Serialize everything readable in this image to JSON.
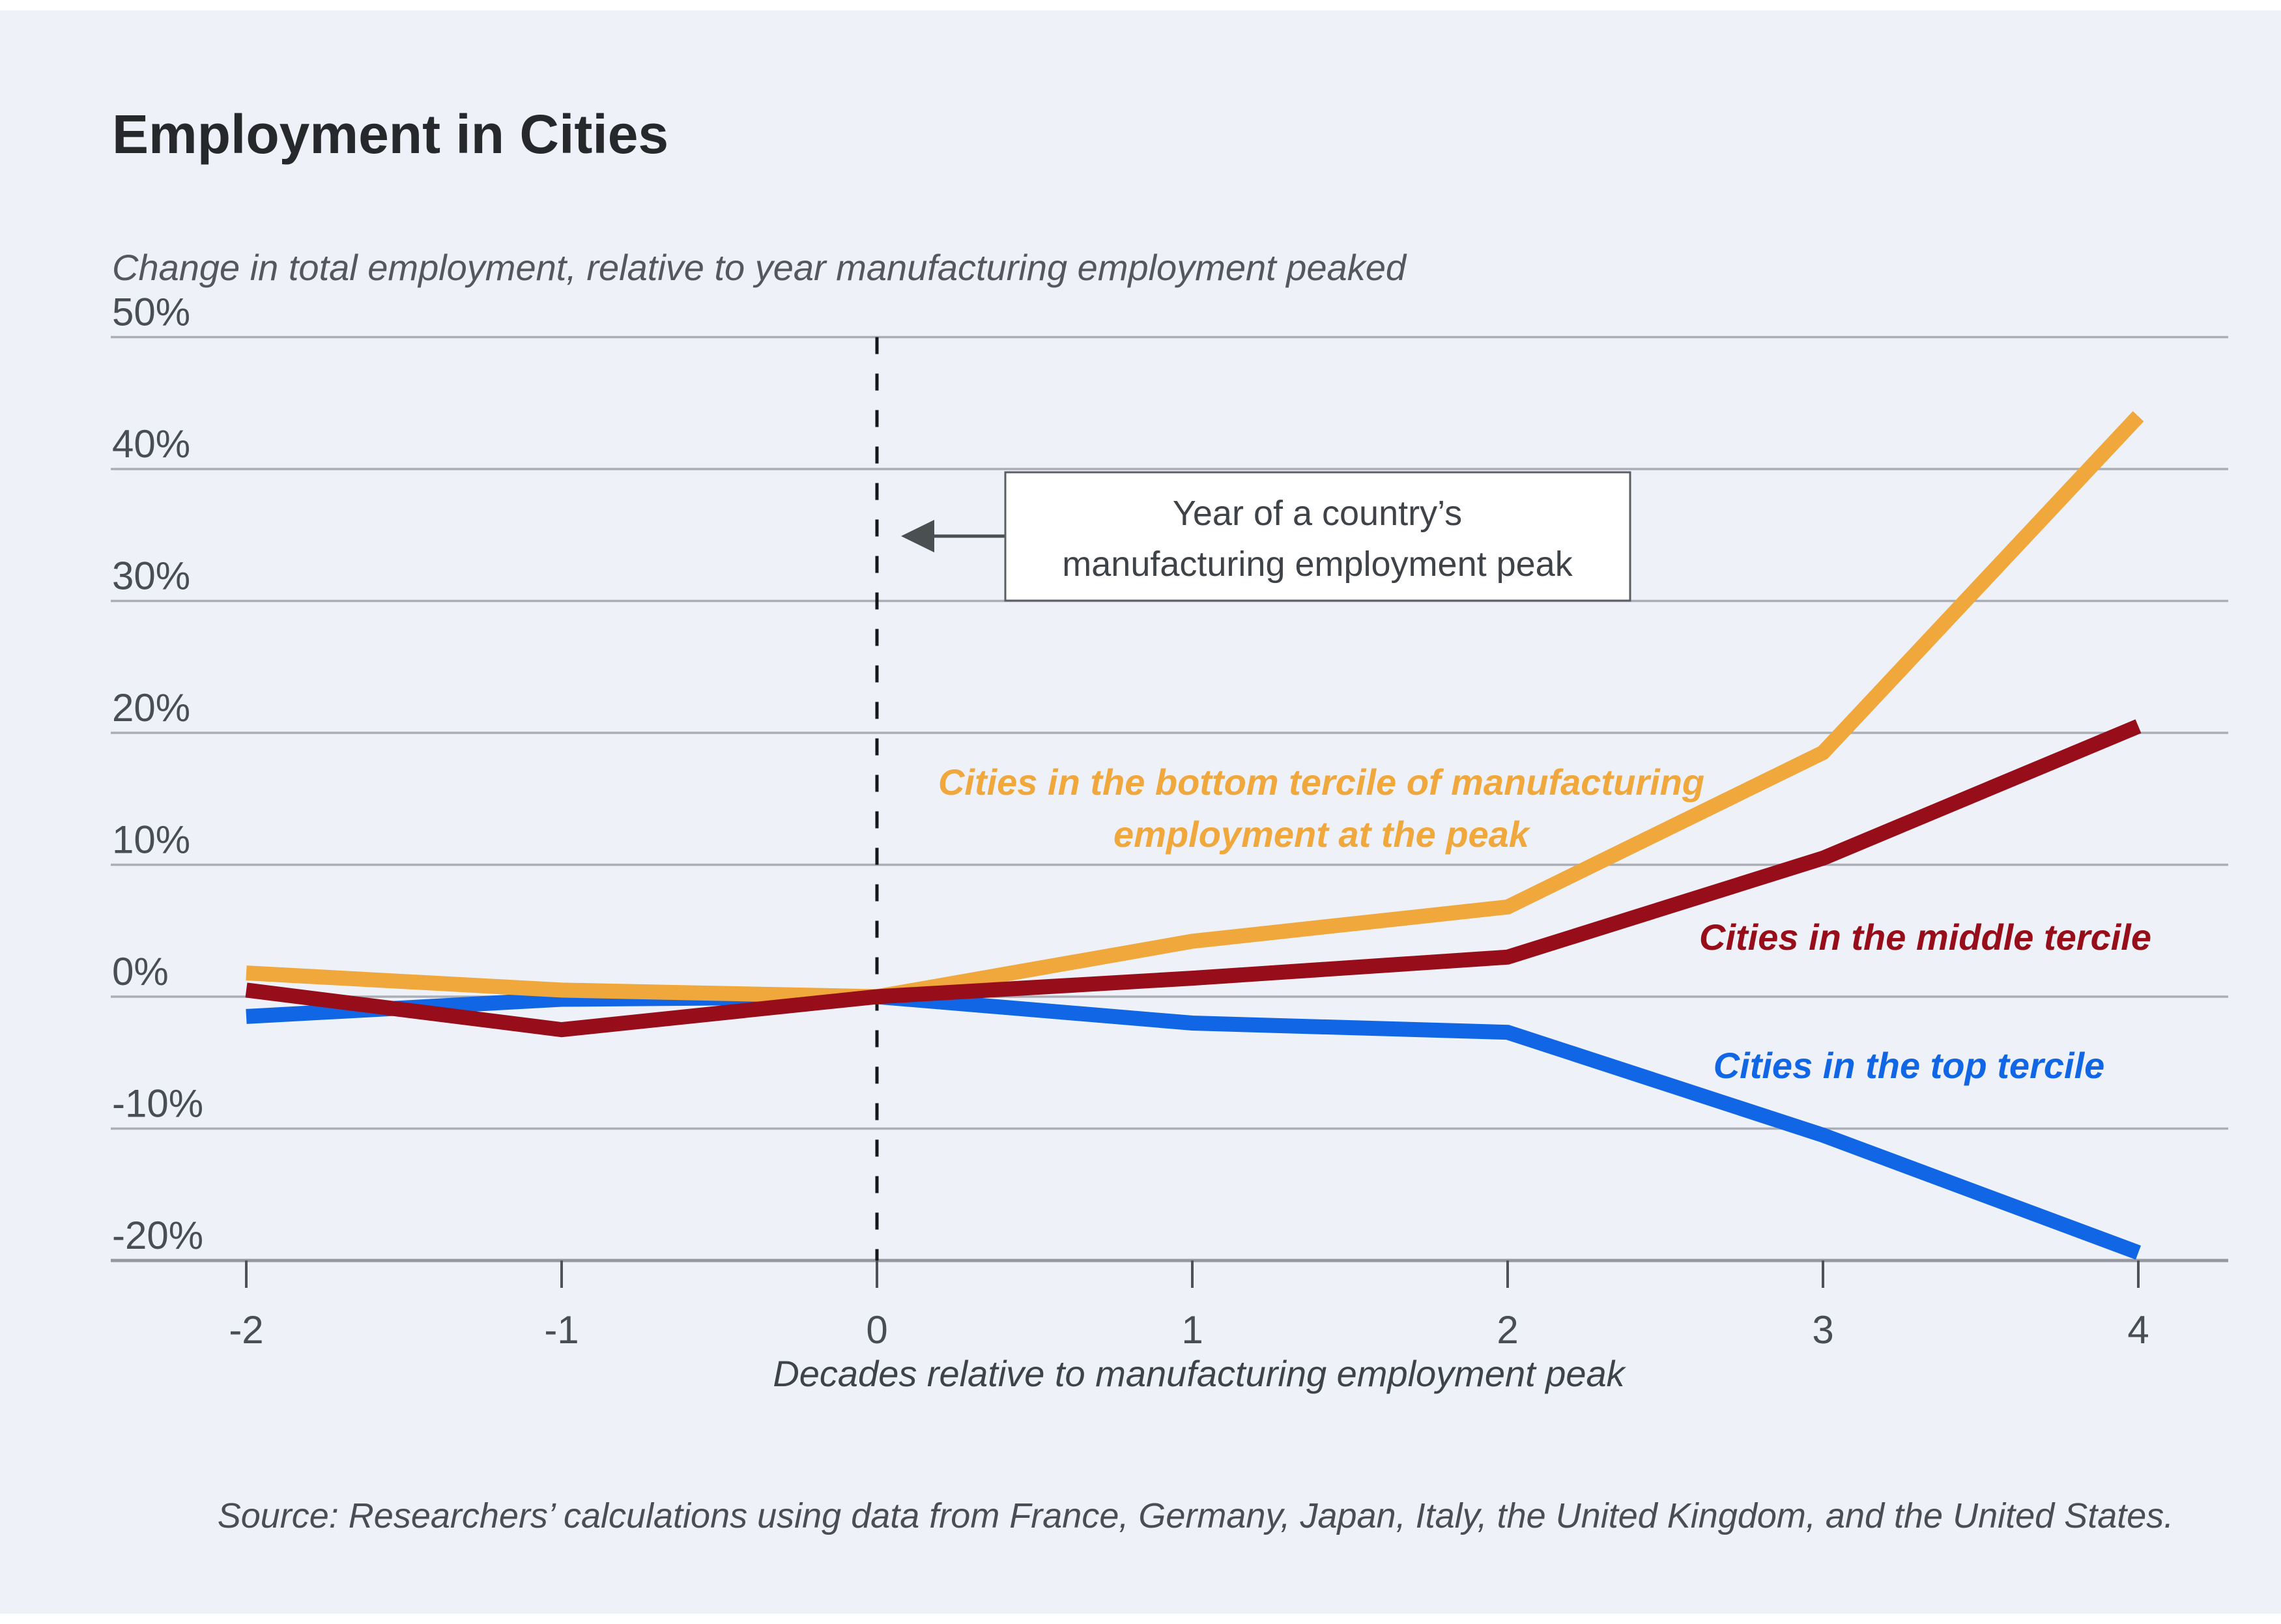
{
  "page": {
    "title": "Employment in Cities",
    "source_note": "Source: Researchers’ calculations using data from France, Germany, Japan, Italy, the United Kingdom, and the United States."
  },
  "chart_data": {
    "type": "line",
    "title": "Employment in Cities",
    "axis_note": "Change in total employment, relative to year manufacturing employment peaked",
    "xlabel": "Decades relative to manufacturing employment peak",
    "x": [
      -2,
      -1,
      0,
      1,
      2,
      3,
      4
    ],
    "x_tick_labels": [
      "-2",
      "-1",
      "0",
      "1",
      "2",
      "3",
      "4"
    ],
    "y_ticks": [
      50,
      40,
      30,
      20,
      10,
      0,
      -10,
      -20
    ],
    "y_tick_labels": [
      "50%",
      "40%",
      "30%",
      "20%",
      "10%",
      "0%",
      "-10%",
      "-20%"
    ],
    "ylim": [
      -22,
      52
    ],
    "grid": "horizontal",
    "legend_position": "inline-annotations",
    "vline_x": 0,
    "annotation": {
      "text_lines": [
        "Year of a country’s",
        "manufacturing employment peak"
      ],
      "points_to": "manufacturing employment peak vertical line"
    },
    "series": [
      {
        "name": "bottom-tercile",
        "label": "Cities in the bottom tercile of manufacturing employment at the peak",
        "label_lines": [
          "Cities in the bottom tercile of manufacturing",
          "employment at the peak"
        ],
        "color": "#F0A73B",
        "values": [
          1.8,
          0.5,
          0,
          4.2,
          6.8,
          18.5,
          44
        ]
      },
      {
        "name": "middle-tercile",
        "label": "Cities in the middle tercile",
        "label_lines": [
          "Cities in the middle tercile"
        ],
        "color": "#970D19",
        "values": [
          0.5,
          -2.5,
          0,
          1.4,
          3,
          10.5,
          20.5
        ]
      },
      {
        "name": "top-tercile",
        "label": "Cities in the top tercile",
        "label_lines": [
          "Cities in the top tercile"
        ],
        "color": "#1166E6",
        "values": [
          -1.5,
          -0.2,
          0,
          -2,
          -2.7,
          -10.5,
          -19.4
        ]
      }
    ]
  },
  "colors": {
    "background": "#EEF1F8",
    "gridline": "#ABAFB5",
    "axis": "#95999F",
    "dashed_line": "#15171A",
    "annotation_border": "#5A5F63",
    "annotation_fill": "#FFFFFF"
  }
}
